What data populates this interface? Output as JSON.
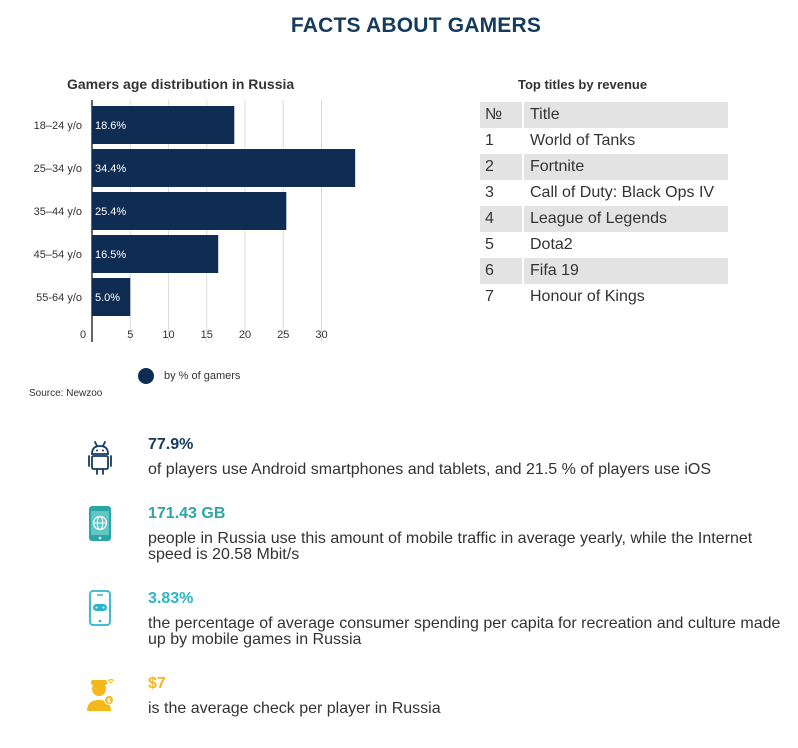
{
  "page_title": "FACTS ABOUT GAMERS",
  "chart_data": {
    "type": "bar",
    "orientation": "horizontal",
    "title": "Gamers age distribution in Russia",
    "categories": [
      "18–24 y/o",
      "25–34 y/o",
      "35–44 y/o",
      "45–54 y/o",
      "55-64 y/o"
    ],
    "values": [
      18.6,
      34.4,
      25.4,
      16.5,
      5.0
    ],
    "data_labels": [
      "18.6%",
      "34.4%",
      "25.4%",
      "16.5%",
      "5.0%"
    ],
    "x_ticks": [
      "0",
      "5",
      "10",
      "15",
      "20",
      "25",
      "30"
    ],
    "xlim": [
      0,
      30
    ],
    "grid": true,
    "series_name": "by % of gamers",
    "legend_position": "bottom",
    "bar_color": "#0f2d52"
  },
  "source": "Source: Newzoo",
  "top_titles": {
    "title": "Top titles by revenue",
    "header": {
      "num": "№",
      "title": "Title"
    },
    "rows": [
      {
        "num": "1",
        "title": "World of Tanks"
      },
      {
        "num": "2",
        "title": "Fortnite"
      },
      {
        "num": "3",
        "title": "Call of Duty: Black Ops IV"
      },
      {
        "num": "4",
        "title": "League of Legends"
      },
      {
        "num": "5",
        "title": "Dota2"
      },
      {
        "num": "6",
        "title": "Fifa 19"
      },
      {
        "num": "7",
        "title": "Honour of Kings"
      }
    ]
  },
  "facts": [
    {
      "icon": "android-icon",
      "value": "77.9%",
      "color": "#143a5e",
      "text": "of players use Android smartphones and tablets, and 21.5 % of players use iOS"
    },
    {
      "icon": "mobile-globe-icon",
      "value": "171.43 GB",
      "color": "#2aa7a4",
      "text": "people in Russia use this amount of mobile traffic in average yearly, while the Internet speed is 20.58 Mbit/s"
    },
    {
      "icon": "mobile-gamepad-icon",
      "value": "3.83%",
      "color": "#2bb5c9",
      "text": "the percentage of average consumer spending per capita for recreation and culture made up by mobile games in Russia"
    },
    {
      "icon": "gamer-money-icon",
      "value": "$7",
      "color": "#f4b81c",
      "text": "is the average check per player in Russia"
    }
  ]
}
